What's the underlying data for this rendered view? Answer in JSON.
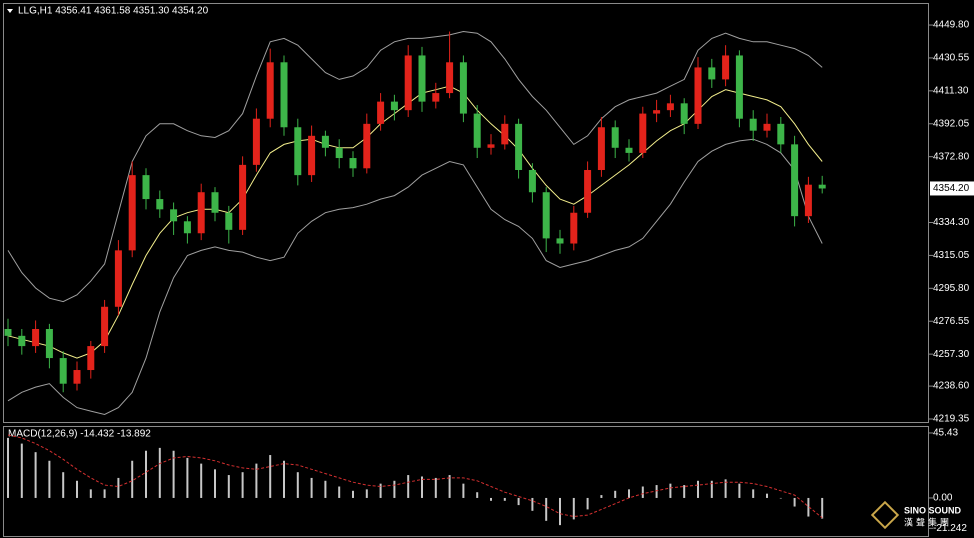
{
  "chart_data": [
    {
      "type": "candlestick",
      "title": "LLG,H1  4356.41 4361.58 4351.30 4354.20",
      "open": [
        4272,
        4268,
        4262,
        4272,
        4255,
        4240,
        4248,
        4262,
        4285,
        4318,
        4362,
        4348,
        4342,
        4335,
        4328,
        4352,
        4340,
        4330,
        4368,
        4395,
        4428,
        4390,
        4362,
        4385,
        4378,
        4372,
        4366,
        4392,
        4405,
        4400,
        4432,
        4405,
        4410,
        4428,
        4398,
        4378,
        4380,
        4392,
        4365,
        4352,
        4325,
        4322,
        4340,
        4365,
        4390,
        4378,
        4375,
        4398,
        4400,
        4404,
        4392,
        4425,
        4418,
        4432,
        4395,
        4388,
        4392,
        4380,
        4338,
        4356.41
      ],
      "high": [
        4278,
        4272,
        4277,
        4275,
        4259,
        4253,
        4265,
        4289,
        4324,
        4370,
        4366,
        4353,
        4346,
        4338,
        4357,
        4355,
        4344,
        4373,
        4401,
        4436,
        4432,
        4395,
        4391,
        4388,
        4383,
        4376,
        4398,
        4410,
        4409,
        4438,
        4437,
        4416,
        4446,
        4432,
        4403,
        4386,
        4397,
        4395,
        4369,
        4355,
        4330,
        4344,
        4370,
        4396,
        4394,
        4383,
        4402,
        4406,
        4409,
        4407,
        4431,
        4430,
        4438,
        4435,
        4400,
        4398,
        4396,
        4385,
        4361,
        4361.58
      ],
      "low": [
        4262,
        4257,
        4258,
        4249,
        4235,
        4236,
        4243,
        4258,
        4280,
        4314,
        4342,
        4337,
        4327,
        4322,
        4324,
        4335,
        4322,
        4327,
        4364,
        4390,
        4385,
        4356,
        4358,
        4373,
        4366,
        4361,
        4363,
        4388,
        4394,
        4396,
        4399,
        4401,
        4407,
        4393,
        4372,
        4374,
        4377,
        4360,
        4346,
        4317,
        4316,
        4318,
        4337,
        4361,
        4372,
        4370,
        4372,
        4393,
        4396,
        4386,
        4389,
        4413,
        4414,
        4390,
        4382,
        4384,
        4375,
        4332,
        4334,
        4351.3
      ],
      "close": [
        4268,
        4262,
        4272,
        4255,
        4240,
        4248,
        4262,
        4285,
        4318,
        4362,
        4348,
        4342,
        4335,
        4328,
        4352,
        4340,
        4330,
        4368,
        4395,
        4428,
        4390,
        4362,
        4385,
        4378,
        4372,
        4366,
        4392,
        4405,
        4400,
        4432,
        4405,
        4410,
        4428,
        4398,
        4378,
        4380,
        4392,
        4365,
        4352,
        4325,
        4322,
        4340,
        4365,
        4390,
        4378,
        4375,
        4398,
        4400,
        4404,
        4392,
        4425,
        4418,
        4432,
        4395,
        4388,
        4392,
        4380,
        4338,
        4356.41,
        4354.2
      ],
      "up_color": "#e3231b",
      "down_color": "#3db549",
      "lines": [
        {
          "color": "#a0a0a0",
          "values": [
            4318,
            4305,
            4296,
            4290,
            4288,
            4292,
            4300,
            4310,
            4340,
            4370,
            4385,
            4392,
            4392,
            4388,
            4385,
            4384,
            4388,
            4398,
            4420,
            4440,
            4442,
            4438,
            4430,
            4422,
            4418,
            4420,
            4425,
            4435,
            4440,
            4442,
            4442,
            4443,
            4444,
            4446,
            4445,
            4440,
            4430,
            4418,
            4408,
            4400,
            4390,
            4380,
            4385,
            4395,
            4402,
            4406,
            4408,
            4410,
            4414,
            4418,
            4435,
            4442,
            4445,
            4442,
            4440,
            4440,
            4438,
            4436,
            4432,
            4425
          ]
        },
        {
          "color": "#a0a0a0",
          "values": [
            4230,
            4235,
            4238,
            4240,
            4232,
            4226,
            4224,
            4222,
            4226,
            4235,
            4255,
            4282,
            4302,
            4315,
            4318,
            4320,
            4318,
            4317,
            4314,
            4312,
            4314,
            4328,
            4335,
            4340,
            4342,
            4343,
            4345,
            4348,
            4350,
            4355,
            4362,
            4366,
            4370,
            4368,
            4355,
            4342,
            4336,
            4332,
            4325,
            4312,
            4308,
            4310,
            4312,
            4315,
            4318,
            4320,
            4325,
            4335,
            4345,
            4358,
            4370,
            4376,
            4380,
            4382,
            4383,
            4380,
            4375,
            4365,
            4338,
            4322
          ]
        },
        {
          "color": "#f3ee8c",
          "values": [
            4268,
            4266,
            4264,
            4262,
            4258,
            4255,
            4258,
            4265,
            4280,
            4298,
            4315,
            4328,
            4337,
            4340,
            4342,
            4342,
            4340,
            4348,
            4362,
            4375,
            4380,
            4382,
            4383,
            4380,
            4378,
            4378,
            4384,
            4392,
            4398,
            4404,
            4410,
            4412,
            4414,
            4410,
            4400,
            4392,
            4385,
            4377,
            4366,
            4356,
            4348,
            4345,
            4350,
            4356,
            4362,
            4368,
            4375,
            4382,
            4388,
            4392,
            4400,
            4408,
            4412,
            4410,
            4408,
            4406,
            4402,
            4392,
            4380,
            4370
          ]
        }
      ],
      "ylim": [
        4217.6,
        4462.1
      ],
      "yticks": [
        {
          "value": 4449.8,
          "label": "4449.80"
        },
        {
          "value": 4430.55,
          "label": "4430.55"
        },
        {
          "value": 4411.3,
          "label": "4411.30"
        },
        4392.05,
        {
          "value": 4372.8,
          "label": "4372.80"
        },
        {
          "value": 4334.3,
          "label": "4334.30"
        },
        4315.05,
        {
          "value": 4295.8,
          "label": "4295.80"
        },
        4276.55,
        {
          "value": 4257.3,
          "label": "4257.30"
        },
        {
          "value": 4238.6,
          "label": "4238.60"
        },
        4219.35
      ],
      "price_label": {
        "value": 4354.2,
        "label": "4354.20"
      }
    },
    {
      "type": "macd",
      "title": "MACD(12,26,9) -14.432 -13.892",
      "color": "#c8c8c8",
      "values": [
        42,
        38,
        32,
        26,
        18,
        12,
        6,
        6,
        14,
        26,
        33,
        35,
        33,
        28,
        24,
        20,
        16,
        18,
        24,
        30,
        26,
        18,
        14,
        12,
        8,
        5,
        6,
        10,
        12,
        16,
        15,
        14,
        16,
        10,
        4,
        -2,
        -2,
        -5,
        -9,
        -16,
        -19,
        -15,
        -8,
        2,
        5,
        6,
        8,
        9,
        10,
        9,
        12,
        12,
        13,
        10,
        6,
        3,
        0,
        -6,
        -13,
        -14.432
      ],
      "signal": {
        "color": "#d53030",
        "values": [
          44,
          42,
          38,
          33,
          27,
          20,
          14,
          9,
          8,
          12,
          18,
          24,
          28,
          29,
          28,
          26,
          23,
          21,
          20,
          22,
          24,
          23,
          20,
          17,
          14,
          11,
          9,
          8,
          9,
          11,
          13,
          13,
          14,
          14,
          12,
          8,
          4,
          1,
          -2,
          -6,
          -11,
          -13,
          -12,
          -8,
          -4,
          0,
          3,
          5,
          7,
          8,
          9,
          10,
          11,
          11,
          10,
          8,
          5,
          2,
          -6,
          -13.892
        ]
      },
      "ylim": [
        -27.3,
        49.6
      ],
      "yticks": [
        45.43,
        {
          "value": 0,
          "label": "0.00"
        },
        -21.242
      ]
    }
  ],
  "watermark": [
    "SINO SOUND",
    "漢聲集團"
  ]
}
